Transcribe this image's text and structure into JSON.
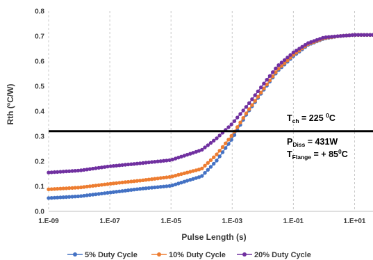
{
  "chart_data": {
    "type": "line",
    "title": "",
    "xlabel": "Pulse Length (s)",
    "ylabel": "Rth (ºC/W)",
    "x_scale": "log",
    "xlim": [
      1e-09,
      40
    ],
    "ylim": [
      0,
      0.8
    ],
    "x_ticks": [
      "1.E-09",
      "1.E-07",
      "1.E-05",
      "1.E-03",
      "1.E-01",
      "1.E+01"
    ],
    "x_tick_values": [
      1e-09,
      1e-07,
      1e-05,
      0.001,
      0.1,
      10
    ],
    "y_ticks": [
      "0.0",
      "0.1",
      "0.2",
      "0.3",
      "0.4",
      "0.5",
      "0.6",
      "0.7",
      "0.8"
    ],
    "y_tick_values": [
      0,
      0.1,
      0.2,
      0.3,
      0.4,
      0.5,
      0.6,
      0.7,
      0.8
    ],
    "grid": "vertical dashed at decades",
    "legend_position": "bottom",
    "reference_line_y": 0.32,
    "x": [
      1e-09,
      1e-08,
      1e-07,
      1e-06,
      1e-05,
      0.0001,
      0.0003,
      0.001,
      0.003,
      0.01,
      0.03,
      0.1,
      0.3,
      1,
      3,
      10,
      40
    ],
    "series": [
      {
        "name": "5% Duty Cycle",
        "color": "#4472c4",
        "values": [
          0.053,
          0.06,
          0.075,
          0.09,
          0.102,
          0.14,
          0.2,
          0.29,
          0.39,
          0.48,
          0.56,
          0.62,
          0.665,
          0.69,
          0.7,
          0.705,
          0.705
        ]
      },
      {
        "name": "10% Duty Cycle",
        "color": "#ed7d31",
        "values": [
          0.088,
          0.095,
          0.11,
          0.123,
          0.138,
          0.17,
          0.225,
          0.305,
          0.395,
          0.485,
          0.565,
          0.625,
          0.668,
          0.692,
          0.7,
          0.705,
          0.705
        ]
      },
      {
        "name": "20% Duty Cycle",
        "color": "#7030a0",
        "values": [
          0.155,
          0.163,
          0.18,
          0.192,
          0.205,
          0.245,
          0.29,
          0.35,
          0.42,
          0.505,
          0.58,
          0.635,
          0.672,
          0.695,
          0.7,
          0.705,
          0.705
        ]
      }
    ],
    "annotations": [
      {
        "main": "T",
        "sub": "ch",
        "rest": " = 225 ",
        "sup": "0",
        "tail": "C"
      },
      {
        "main": "P",
        "sub": "Diss",
        "rest": " = 431W",
        "sup": "",
        "tail": ""
      },
      {
        "main": "T",
        "sub": "Flange",
        "rest": " = + 85",
        "sup": "0",
        "tail": "C"
      }
    ]
  }
}
